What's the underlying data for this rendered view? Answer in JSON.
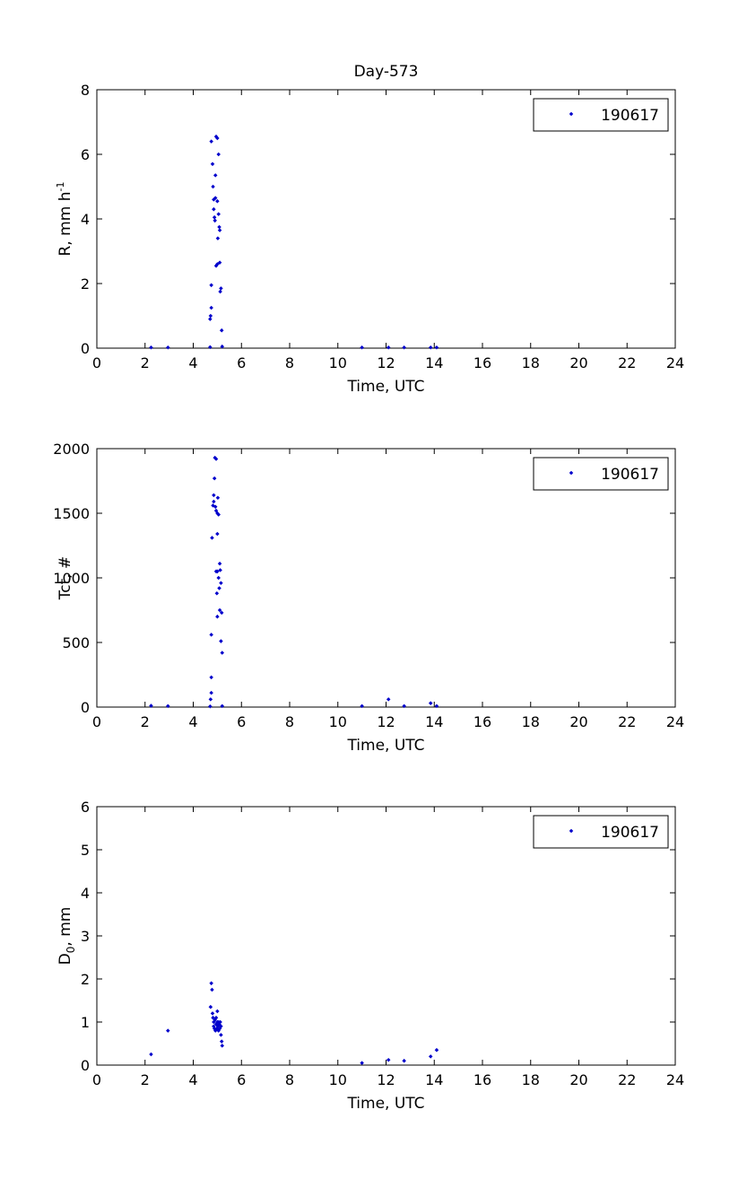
{
  "title": "Day-573",
  "colors": {
    "marker": "#0000cc",
    "axes": "#000000",
    "background": "#ffffff"
  },
  "chart_data": [
    {
      "type": "scatter",
      "title": "Day-573",
      "xlabel": "Time, UTC",
      "ylabel": "R, mm h",
      "ylabel_sup": "-1",
      "xlim": [
        0,
        24
      ],
      "ylim": [
        0,
        8
      ],
      "xticks": [
        "0",
        "2",
        "4",
        "6",
        "8",
        "10",
        "12",
        "14",
        "16",
        "18",
        "20",
        "22",
        "24"
      ],
      "yticks": [
        "0",
        "2",
        "4",
        "6",
        "8"
      ],
      "grid": false,
      "legend_position": "top-right",
      "series": [
        {
          "name": "190617",
          "marker": "dot",
          "points": [
            [
              2.25,
              0.02
            ],
            [
              2.95,
              0.02
            ],
            [
              4.7,
              0.03
            ],
            [
              4.7,
              0.9
            ],
            [
              4.72,
              1.0
            ],
            [
              4.75,
              1.25
            ],
            [
              4.75,
              1.95
            ],
            [
              4.75,
              6.4
            ],
            [
              4.8,
              5.7
            ],
            [
              4.82,
              5.0
            ],
            [
              4.85,
              4.6
            ],
            [
              4.85,
              4.3
            ],
            [
              4.88,
              4.05
            ],
            [
              4.9,
              3.95
            ],
            [
              4.92,
              5.35
            ],
            [
              4.92,
              4.65
            ],
            [
              4.95,
              6.55
            ],
            [
              4.95,
              2.55
            ],
            [
              5.0,
              4.55
            ],
            [
              5.0,
              6.5
            ],
            [
              5.0,
              2.6
            ],
            [
              5.02,
              3.4
            ],
            [
              5.05,
              6.0
            ],
            [
              5.05,
              4.15
            ],
            [
              5.08,
              3.75
            ],
            [
              5.1,
              2.65
            ],
            [
              5.1,
              3.65
            ],
            [
              5.12,
              1.75
            ],
            [
              5.15,
              1.85
            ],
            [
              5.18,
              0.55
            ],
            [
              5.2,
              0.05
            ],
            [
              11.0,
              0.02
            ],
            [
              12.1,
              0.02
            ],
            [
              12.75,
              0.02
            ],
            [
              13.85,
              0.02
            ],
            [
              14.1,
              0.02
            ]
          ]
        }
      ]
    },
    {
      "type": "scatter",
      "title": "",
      "xlabel": "Time, UTC",
      "ylabel": "Tct, #",
      "ylabel_sup": "",
      "xlim": [
        0,
        24
      ],
      "ylim": [
        0,
        2000
      ],
      "xticks": [
        "0",
        "2",
        "4",
        "6",
        "8",
        "10",
        "12",
        "14",
        "16",
        "18",
        "20",
        "22",
        "24"
      ],
      "yticks": [
        "0",
        "500",
        "1000",
        "1500",
        "2000"
      ],
      "grid": false,
      "legend_position": "top-right",
      "series": [
        {
          "name": "190617",
          "marker": "dot",
          "points": [
            [
              2.25,
              10
            ],
            [
              2.95,
              8
            ],
            [
              4.7,
              5
            ],
            [
              4.72,
              60
            ],
            [
              4.75,
              110
            ],
            [
              4.75,
              230
            ],
            [
              4.75,
              560
            ],
            [
              4.78,
              1310
            ],
            [
              4.82,
              1560
            ],
            [
              4.85,
              1590
            ],
            [
              4.85,
              1640
            ],
            [
              4.88,
              1770
            ],
            [
              4.9,
              1930
            ],
            [
              4.92,
              1550
            ],
            [
              4.95,
              1920
            ],
            [
              4.95,
              1520
            ],
            [
              4.95,
              1050
            ],
            [
              4.98,
              880
            ],
            [
              5.0,
              1050
            ],
            [
              5.0,
              1500
            ],
            [
              5.0,
              1340
            ],
            [
              5.0,
              700
            ],
            [
              5.02,
              1620
            ],
            [
              5.05,
              1490
            ],
            [
              5.05,
              1000
            ],
            [
              5.08,
              920
            ],
            [
              5.1,
              1110
            ],
            [
              5.1,
              750
            ],
            [
              5.12,
              1060
            ],
            [
              5.15,
              960
            ],
            [
              5.15,
              510
            ],
            [
              5.18,
              730
            ],
            [
              5.2,
              420
            ],
            [
              5.2,
              8
            ],
            [
              11.0,
              8
            ],
            [
              12.1,
              60
            ],
            [
              12.75,
              8
            ],
            [
              13.85,
              30
            ],
            [
              14.1,
              8
            ]
          ]
        }
      ]
    },
    {
      "type": "scatter",
      "title": "",
      "xlabel": "Time, UTC",
      "ylabel": "D",
      "ylabel_sub": "0",
      "ylabel_suffix": ", mm",
      "xlim": [
        0,
        24
      ],
      "ylim": [
        0,
        6
      ],
      "xticks": [
        "0",
        "2",
        "4",
        "6",
        "8",
        "10",
        "12",
        "14",
        "16",
        "18",
        "20",
        "22",
        "24"
      ],
      "yticks": [
        "0",
        "1",
        "2",
        "3",
        "4",
        "5",
        "6"
      ],
      "grid": false,
      "legend_position": "top-right",
      "series": [
        {
          "name": "190617",
          "marker": "dot",
          "points": [
            [
              2.25,
              0.25
            ],
            [
              2.95,
              0.8
            ],
            [
              4.72,
              1.35
            ],
            [
              4.75,
              1.9
            ],
            [
              4.78,
              1.75
            ],
            [
              4.8,
              1.2
            ],
            [
              4.82,
              1.1
            ],
            [
              4.85,
              1.0
            ],
            [
              4.85,
              0.9
            ],
            [
              4.88,
              0.85
            ],
            [
              4.9,
              1.05
            ],
            [
              4.92,
              0.8
            ],
            [
              4.95,
              0.95
            ],
            [
              4.95,
              1.1
            ],
            [
              4.98,
              0.85
            ],
            [
              5.0,
              1.0
            ],
            [
              5.0,
              1.25
            ],
            [
              5.02,
              0.9
            ],
            [
              5.05,
              0.8
            ],
            [
              5.05,
              1.0
            ],
            [
              5.08,
              0.95
            ],
            [
              5.1,
              0.85
            ],
            [
              5.12,
              1.0
            ],
            [
              5.15,
              0.7
            ],
            [
              5.15,
              0.9
            ],
            [
              5.18,
              0.55
            ],
            [
              5.2,
              0.45
            ],
            [
              11.0,
              0.05
            ],
            [
              12.1,
              0.12
            ],
            [
              12.75,
              0.1
            ],
            [
              13.85,
              0.2
            ],
            [
              14.1,
              0.35
            ]
          ]
        }
      ]
    }
  ]
}
